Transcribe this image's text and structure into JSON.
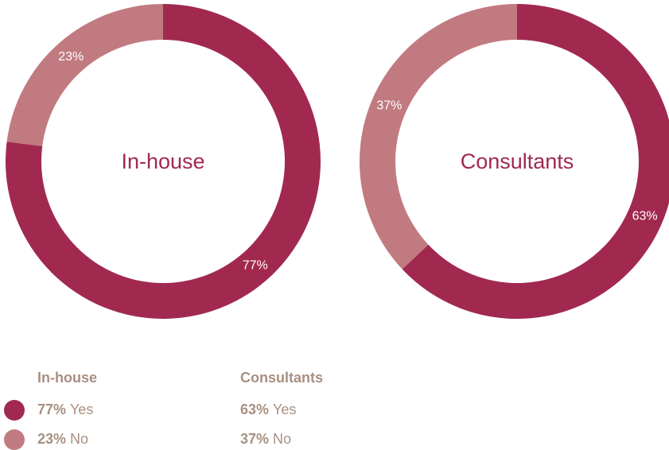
{
  "chart_data": [
    {
      "type": "pie",
      "donut": true,
      "title": "In-house",
      "categories": [
        "Yes",
        "No"
      ],
      "values": [
        77,
        23
      ],
      "value_labels": [
        "77%",
        "23%"
      ],
      "colors": [
        "#a1294f",
        "#c17a80"
      ]
    },
    {
      "type": "pie",
      "donut": true,
      "title": "Consultants",
      "categories": [
        "Yes",
        "No"
      ],
      "values": [
        63,
        37
      ],
      "value_labels": [
        "63%",
        "37%"
      ],
      "colors": [
        "#a1294f",
        "#c17a80"
      ]
    }
  ]
}
